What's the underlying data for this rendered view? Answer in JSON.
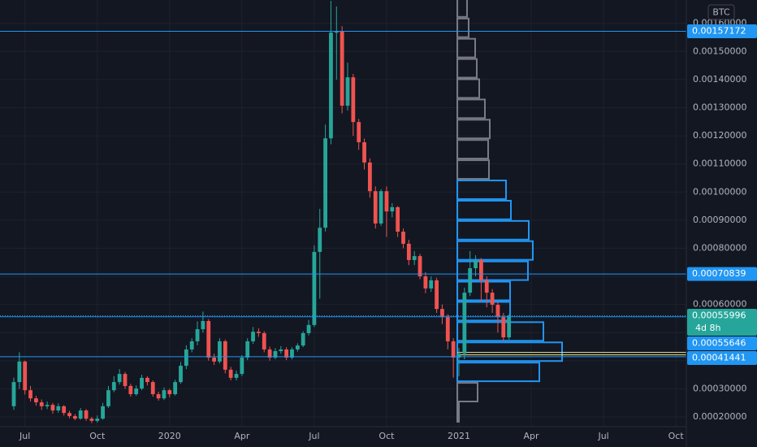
{
  "chart_data": {
    "type": "candlestick",
    "unit": "BTC",
    "categories": [
      null,
      null,
      "Jul",
      null,
      null,
      null,
      null,
      null,
      null,
      null,
      null,
      null,
      null,
      null,
      null,
      "Oct",
      null,
      null,
      null,
      null,
      null,
      null,
      null,
      null,
      null,
      null,
      null,
      null,
      "2020",
      null,
      null,
      null,
      null,
      null,
      null,
      null,
      null,
      null,
      null,
      null,
      null,
      "Apr",
      null,
      null,
      null,
      null,
      null,
      null,
      null,
      null,
      null,
      null,
      null,
      null,
      "Jul",
      null,
      null,
      null,
      null,
      null,
      null,
      null,
      null,
      null,
      null,
      null,
      null,
      "Oct",
      null,
      null,
      null,
      null,
      null,
      null,
      null,
      null,
      null,
      null,
      null,
      null,
      "2021",
      null,
      null,
      null,
      null,
      null,
      null,
      null,
      null,
      null,
      null,
      null,
      null,
      "Apr",
      null,
      null,
      null,
      null,
      null,
      null,
      null,
      null,
      null,
      null,
      null,
      null,
      "Jul",
      null,
      null,
      null,
      null,
      null,
      null,
      null,
      null,
      null,
      null,
      null,
      null,
      "Oct"
    ],
    "open": [
      0.000238,
      0.000324,
      0.000397,
      0.000295,
      0.000266,
      0.000252,
      0.000238,
      0.000243,
      0.000223,
      0.000238,
      0.000214,
      0.000203,
      0.000194,
      0.000223,
      0.000194,
      0.000186,
      0.000194,
      0.000238,
      0.000295,
      0.000324,
      0.000353,
      0.00031,
      0.000281,
      0.000301,
      0.000339,
      0.000324,
      0.000281,
      0.000266,
      0.000295,
      0.000281,
      0.000324,
      0.000382,
      0.00044,
      0.000469,
      0.000512,
      0.000541,
      0.000411,
      0.000397,
      0.000469,
      0.000368,
      0.000339,
      0.000353,
      0.000411,
      0.000469,
      0.000503,
      0.000498,
      0.00044,
      0.000411,
      0.000434,
      0.00044,
      0.000411,
      0.00044,
      0.000454,
      0.000498,
      0.000527,
      0.000787,
      0.000873,
      0.001191,
      0.001567,
      0.001573,
      0.001307,
      0.001408,
      0.001249,
      0.001177,
      0.001105,
      0.001003,
      0.000888,
      0.001003,
      0.000931,
      0.000946,
      0.000859,
      0.000816,
      0.000758,
      0.000772,
      0.0007,
      0.000657,
      0.000686,
      0.000584,
      0.000555,
      0.000469,
      0.000411,
      0.000425,
      0.000642,
      0.000729,
      0.000758,
      0.000686,
      0.000642,
      0.000599,
      0.000555,
      0.000483,
      null,
      null,
      null,
      null,
      null,
      null,
      null,
      null,
      null,
      null,
      null,
      null,
      null,
      null,
      null,
      null,
      null,
      null,
      null,
      null,
      null,
      null,
      null,
      null,
      null,
      null,
      null,
      null,
      null,
      null
    ],
    "high": [
      0.00034,
      0.00043,
      0.0004,
      0.00031,
      0.000275,
      0.000262,
      0.000255,
      0.00025,
      0.000248,
      0.000242,
      0.000222,
      0.00021,
      0.000232,
      0.000228,
      0.0002,
      0.000205,
      0.00025,
      0.00031,
      0.000345,
      0.00037,
      0.00036,
      0.000318,
      0.000312,
      0.00035,
      0.000345,
      0.00033,
      0.00029,
      0.000305,
      0.0003,
      0.000332,
      0.000395,
      0.000455,
      0.00048,
      0.00054,
      0.000575,
      0.000548,
      0.000425,
      0.00048,
      0.000475,
      0.000378,
      0.000365,
      0.00042,
      0.00048,
      0.00052,
      0.000515,
      0.000505,
      0.00045,
      0.000445,
      0.000452,
      0.000448,
      0.000448,
      0.000462,
      0.000505,
      0.000545,
      0.00081,
      0.00094,
      0.00124,
      0.00168,
      0.00166,
      0.00159,
      0.00146,
      0.00142,
      0.00126,
      0.00119,
      0.00112,
      0.00102,
      0.00101,
      0.00102,
      0.00096,
      0.00095,
      0.00087,
      0.00083,
      0.00079,
      0.00078,
      0.000715,
      0.0007,
      0.000695,
      0.0006,
      0.000565,
      0.00048,
      0.000445,
      0.00066,
      0.00079,
      0.000775,
      0.000765,
      0.0007,
      0.000655,
      0.00061,
      0.00057,
      0.000565,
      null,
      null,
      null,
      null,
      null,
      null,
      null,
      null,
      null,
      null,
      null,
      null,
      null,
      null,
      null,
      null,
      null,
      null,
      null,
      null,
      null,
      null,
      null,
      null,
      null,
      null,
      null,
      null,
      null,
      null
    ],
    "low": [
      0.000225,
      0.0003,
      0.00028,
      0.000255,
      0.00024,
      0.000225,
      0.000228,
      0.000212,
      0.000215,
      0.000205,
      0.000195,
      0.000188,
      0.00019,
      0.000186,
      0.000178,
      0.00018,
      0.00019,
      0.000232,
      0.000288,
      0.000315,
      0.0003,
      0.000272,
      0.000275,
      0.000295,
      0.000312,
      0.000272,
      0.000258,
      0.00026,
      0.00027,
      0.000276,
      0.000318,
      0.00037,
      0.00043,
      0.000455,
      0.0005,
      0.0004,
      0.000385,
      0.00039,
      0.000355,
      0.00033,
      0.00033,
      0.000345,
      0.000402,
      0.00046,
      0.000485,
      0.00043,
      0.0004,
      0.000405,
      0.000425,
      0.000402,
      0.000405,
      0.000432,
      0.000448,
      0.00049,
      0.00052,
      0.00062,
      0.00086,
      0.00117,
      0.0014,
      0.00128,
      0.00129,
      0.0012,
      0.00115,
      0.00108,
      0.00098,
      0.00087,
      0.00088,
      0.00084,
      0.00091,
      0.00084,
      0.0008,
      0.00074,
      0.00074,
      0.00069,
      0.00064,
      0.000645,
      0.00057,
      0.00053,
      0.00044,
      0.00034,
      0.000345,
      0.000405,
      0.00063,
      0.0007,
      0.00061,
      0.00059,
      0.00057,
      0.0005,
      0.00047,
      0.000475,
      null,
      null,
      null,
      null,
      null,
      null,
      null,
      null,
      null,
      null,
      null,
      null,
      null,
      null,
      null,
      null,
      null,
      null,
      null,
      null,
      null,
      null,
      null,
      null,
      null,
      null,
      null,
      null,
      null,
      null
    ],
    "close": [
      0.000324,
      0.000397,
      0.000295,
      0.000266,
      0.000252,
      0.000238,
      0.000243,
      0.000223,
      0.000238,
      0.000214,
      0.000203,
      0.000194,
      0.000223,
      0.000194,
      0.000186,
      0.000194,
      0.000238,
      0.000295,
      0.000324,
      0.000353,
      0.00031,
      0.000281,
      0.000301,
      0.000339,
      0.000324,
      0.000281,
      0.000266,
      0.000295,
      0.000281,
      0.000324,
      0.000382,
      0.00044,
      0.000469,
      0.000512,
      0.000541,
      0.000411,
      0.000397,
      0.000469,
      0.000368,
      0.000339,
      0.000353,
      0.000411,
      0.000469,
      0.000503,
      0.000498,
      0.00044,
      0.000411,
      0.000434,
      0.00044,
      0.000411,
      0.00044,
      0.000454,
      0.000498,
      0.000527,
      0.000787,
      0.000873,
      0.001191,
      0.001567,
      0.001573,
      0.001307,
      0.001408,
      0.001249,
      0.001177,
      0.001105,
      0.001003,
      0.000888,
      0.001003,
      0.000931,
      0.000946,
      0.000859,
      0.000816,
      0.000758,
      0.000772,
      0.0007,
      0.000657,
      0.000686,
      0.000584,
      0.000555,
      0.000469,
      0.000411,
      0.000425,
      0.000642,
      0.000729,
      0.000758,
      0.000686,
      0.000642,
      0.000599,
      0.000555,
      0.000483,
      0.00055996,
      null,
      null,
      null,
      null,
      null,
      null,
      null,
      null,
      null,
      null,
      null,
      null,
      null,
      null,
      null,
      null,
      null,
      null,
      null,
      null,
      null,
      null,
      null,
      null,
      null,
      null,
      null,
      null,
      null,
      null
    ],
    "up_color": "#26a69a",
    "down_color": "#ef5350",
    "ylim": [
      0.0001653,
      0.001683
    ],
    "yticks": [
      {
        "value": 0.0002,
        "label": "0.00020000"
      },
      {
        "value": 0.0003,
        "label": "0.00030000"
      },
      {
        "value": 0.0004,
        "label": "0.00040000"
      },
      {
        "value": 0.0005,
        "label": "0.00050000"
      },
      {
        "value": 0.0006,
        "label": "0.00060000"
      },
      {
        "value": 0.0007,
        "label": "0.00070000"
      },
      {
        "value": 0.0008,
        "label": "0.00080000"
      },
      {
        "value": 0.0009,
        "label": "0.00090000"
      },
      {
        "value": 0.001,
        "label": "0.00100000"
      },
      {
        "value": 0.0011,
        "label": "0.00110000"
      },
      {
        "value": 0.0012,
        "label": "0.00120000"
      },
      {
        "value": 0.0013,
        "label": "0.00130000"
      },
      {
        "value": 0.0014,
        "label": "0.00140000"
      },
      {
        "value": 0.0015,
        "label": "0.00150000"
      },
      {
        "value": 0.0016,
        "label": "0.00160000"
      }
    ],
    "grid": true,
    "lines": [
      {
        "value": 0.00157172,
        "color": "#2196f3"
      },
      {
        "value": 0.00070839,
        "color": "#2196f3"
      },
      {
        "value": 0.00055646,
        "color": "#2196f3"
      },
      {
        "value": 0.00041441,
        "color": "#2196f3"
      }
    ],
    "price_line": {
      "value": 0.00055996,
      "color": "#26a69a",
      "countdown": "4d 8h"
    },
    "volume_profile": {
      "row_lows": [
        0.00018,
        0.000252,
        0.000324,
        0.000396,
        0.000468,
        0.00054,
        0.000612,
        0.000684,
        0.000756,
        0.000828,
        0.0009,
        0.000972,
        0.001044,
        0.001116,
        0.001188,
        0.00126,
        0.001332,
        0.001404,
        0.001476,
        0.001548,
        0.00162
      ],
      "row_height": 7.2e-05,
      "volumes": [
        2,
        25,
        101,
        129,
        106,
        65,
        65,
        87,
        93,
        88,
        66,
        60,
        39,
        38,
        40,
        34,
        27,
        24,
        22,
        14,
        12
      ],
      "colors": [
        "#787b86",
        "#787b86",
        "#2196f3",
        "#2196f3",
        "#2196f3",
        "#2196f3",
        "#2196f3",
        "#2196f3",
        "#2196f3",
        "#2196f3",
        "#2196f3",
        "#2196f3",
        "#787b86",
        "#787b86",
        "#787b86",
        "#787b86",
        "#787b86",
        "#787b86",
        "#787b86",
        "#787b86",
        "#787b86"
      ],
      "poc": 0.000425,
      "poc_color": "#f0e68c"
    }
  }
}
